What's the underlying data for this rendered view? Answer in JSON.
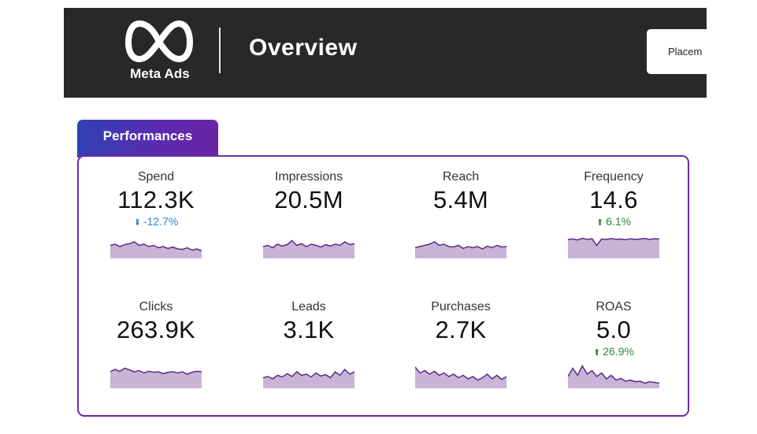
{
  "header": {
    "brand": "Meta Ads",
    "title": "Overview",
    "filter_label": "Placem"
  },
  "tab": {
    "label": "Performances"
  },
  "colors": {
    "header_bg": "#282828",
    "accent_purple": "#6c2aa7",
    "tab_gradient_start": "#2f41b3",
    "spark_fill": "#c9b3d6",
    "spark_line": "#5b2a86",
    "delta_down": "#2a84d6",
    "delta_up": "#2e8a3a"
  },
  "metrics": [
    {
      "label": "Spend",
      "value": "112.3K",
      "delta": "-12.7%",
      "delta_dir": "down",
      "arrow_icon": "arrow-down-icon",
      "spark": [
        0.55,
        0.6,
        0.5,
        0.58,
        0.62,
        0.7,
        0.55,
        0.6,
        0.5,
        0.55,
        0.45,
        0.5,
        0.42,
        0.48,
        0.4,
        0.38,
        0.45,
        0.35,
        0.4,
        0.32
      ]
    },
    {
      "label": "Impressions",
      "value": "20.5M",
      "delta": "",
      "delta_dir": "none",
      "arrow_icon": "",
      "spark": [
        0.5,
        0.55,
        0.45,
        0.6,
        0.52,
        0.58,
        0.75,
        0.55,
        0.62,
        0.5,
        0.6,
        0.55,
        0.48,
        0.58,
        0.52,
        0.6,
        0.55,
        0.7,
        0.58,
        0.62
      ]
    },
    {
      "label": "Reach",
      "value": "5.4M",
      "delta": "",
      "delta_dir": "none",
      "arrow_icon": "",
      "spark": [
        0.45,
        0.5,
        0.55,
        0.6,
        0.7,
        0.55,
        0.6,
        0.5,
        0.48,
        0.55,
        0.42,
        0.5,
        0.45,
        0.5,
        0.4,
        0.52,
        0.45,
        0.55,
        0.48,
        0.5
      ]
    },
    {
      "label": "Frequency",
      "value": "14.6",
      "delta": "6.1%",
      "delta_dir": "up",
      "arrow_icon": "arrow-up-icon",
      "spark": [
        0.8,
        0.82,
        0.78,
        0.85,
        0.8,
        0.83,
        0.55,
        0.82,
        0.8,
        0.84,
        0.8,
        0.82,
        0.79,
        0.83,
        0.8,
        0.82,
        0.84,
        0.8,
        0.83,
        0.82
      ]
    },
    {
      "label": "Clicks",
      "value": "263.9K",
      "delta": "",
      "delta_dir": "none",
      "arrow_icon": "",
      "spark": [
        0.7,
        0.8,
        0.72,
        0.85,
        0.78,
        0.7,
        0.75,
        0.65,
        0.72,
        0.68,
        0.7,
        0.62,
        0.68,
        0.7,
        0.65,
        0.7,
        0.6,
        0.68,
        0.72,
        0.7
      ]
    },
    {
      "label": "Leads",
      "value": "3.1K",
      "delta": "",
      "delta_dir": "none",
      "arrow_icon": "",
      "spark": [
        0.45,
        0.5,
        0.4,
        0.55,
        0.48,
        0.62,
        0.5,
        0.7,
        0.55,
        0.6,
        0.48,
        0.65,
        0.52,
        0.58,
        0.45,
        0.7,
        0.55,
        0.8,
        0.6,
        0.7
      ]
    },
    {
      "label": "Purchases",
      "value": "2.7K",
      "delta": "",
      "delta_dir": "none",
      "arrow_icon": "",
      "spark": [
        0.9,
        0.65,
        0.75,
        0.6,
        0.72,
        0.55,
        0.65,
        0.5,
        0.6,
        0.45,
        0.55,
        0.4,
        0.5,
        0.35,
        0.45,
        0.6,
        0.4,
        0.55,
        0.38,
        0.5
      ]
    },
    {
      "label": "ROAS",
      "value": "5.0",
      "delta": "26.9%",
      "delta_dir": "up",
      "arrow_icon": "arrow-up-icon",
      "spark": [
        0.5,
        0.85,
        0.55,
        0.95,
        0.6,
        0.75,
        0.5,
        0.65,
        0.4,
        0.55,
        0.35,
        0.42,
        0.3,
        0.35,
        0.28,
        0.3,
        0.22,
        0.28,
        0.25,
        0.22
      ]
    }
  ]
}
